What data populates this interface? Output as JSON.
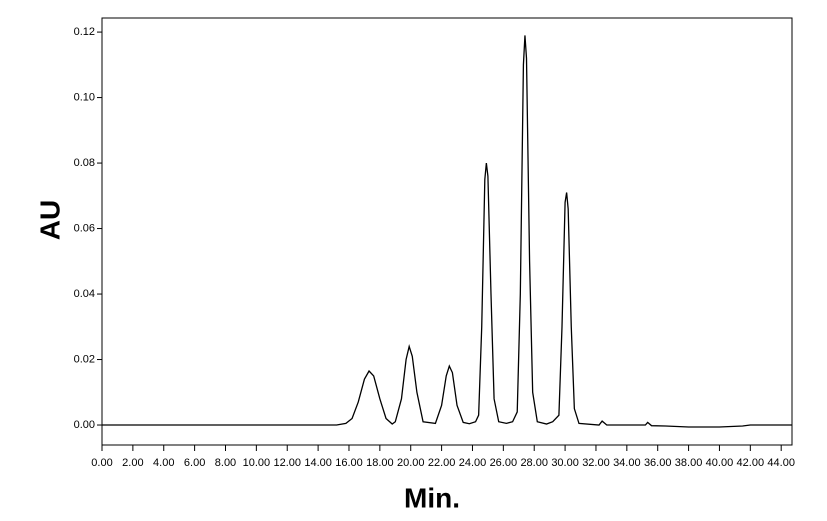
{
  "chart_data": {
    "type": "line",
    "ylabel": "AU",
    "xlabel": "Min.",
    "xlim": [
      0,
      44.7
    ],
    "ylim": [
      -0.0061,
      0.1243
    ],
    "xticks": [
      {
        "value": 0,
        "label": "0.00"
      },
      {
        "value": 2,
        "label": "2.00"
      },
      {
        "value": 4,
        "label": "4.00"
      },
      {
        "value": 6,
        "label": "6.00"
      },
      {
        "value": 8,
        "label": "8.00"
      },
      {
        "value": 10,
        "label": "10.00"
      },
      {
        "value": 12,
        "label": "12.00"
      },
      {
        "value": 14,
        "label": "14.00"
      },
      {
        "value": 16,
        "label": "16.00"
      },
      {
        "value": 18,
        "label": "18.00"
      },
      {
        "value": 20,
        "label": "20.00"
      },
      {
        "value": 22,
        "label": "22.00"
      },
      {
        "value": 24,
        "label": "24.00"
      },
      {
        "value": 26,
        "label": "26.00"
      },
      {
        "value": 28,
        "label": "28.00"
      },
      {
        "value": 30,
        "label": "30.00"
      },
      {
        "value": 32,
        "label": "32.00"
      },
      {
        "value": 34,
        "label": "34.00"
      },
      {
        "value": 36,
        "label": "36.00"
      },
      {
        "value": 38,
        "label": "38.00"
      },
      {
        "value": 40,
        "label": "40.00"
      },
      {
        "value": 42,
        "label": "42.00"
      },
      {
        "value": 44,
        "label": "44.00"
      }
    ],
    "yticks": [
      {
        "value": 0,
        "label": "0.00"
      },
      {
        "value": 0.02,
        "label": "0.02"
      },
      {
        "value": 0.04,
        "label": "0.04"
      },
      {
        "value": 0.06,
        "label": "0.06"
      },
      {
        "value": 0.08,
        "label": "0.08"
      },
      {
        "value": 0.1,
        "label": "0.10"
      },
      {
        "value": 0.12,
        "label": "0.12"
      }
    ],
    "color": "#000000",
    "x": [
      0,
      15.2,
      15.8,
      16.2,
      16.6,
      17.0,
      17.3,
      17.6,
      18.0,
      18.4,
      18.8,
      19.0,
      19.4,
      19.7,
      19.9,
      20.1,
      20.4,
      20.8,
      21.6,
      22.0,
      22.3,
      22.5,
      22.7,
      23.0,
      23.4,
      23.8,
      24.2,
      24.4,
      24.6,
      24.8,
      24.9,
      25.0,
      25.2,
      25.4,
      25.7,
      26.2,
      26.6,
      26.9,
      27.1,
      27.3,
      27.4,
      27.5,
      27.7,
      27.9,
      28.2,
      28.8,
      29.2,
      29.6,
      29.8,
      30.0,
      30.1,
      30.2,
      30.4,
      30.6,
      30.9,
      32.2,
      32.4,
      32.7,
      35.2,
      35.35,
      35.6,
      36.5,
      38,
      40,
      41.5,
      42,
      44.7
    ],
    "values": [
      0,
      0,
      0.0005,
      0.002,
      0.007,
      0.014,
      0.0165,
      0.015,
      0.008,
      0.002,
      0.0003,
      0.001,
      0.008,
      0.02,
      0.024,
      0.021,
      0.01,
      0.001,
      0.0005,
      0.006,
      0.015,
      0.018,
      0.016,
      0.006,
      0.0008,
      0.0004,
      0.001,
      0.003,
      0.03,
      0.075,
      0.08,
      0.076,
      0.04,
      0.008,
      0.001,
      0.0005,
      0.001,
      0.004,
      0.04,
      0.11,
      0.119,
      0.112,
      0.05,
      0.01,
      0.001,
      0.0003,
      0.001,
      0.003,
      0.03,
      0.068,
      0.071,
      0.066,
      0.03,
      0.005,
      0.0005,
      0,
      0.0012,
      0,
      0,
      0.0008,
      -0.0002,
      -0.0003,
      -0.0006,
      -0.0006,
      -0.0003,
      0,
      0
    ]
  }
}
